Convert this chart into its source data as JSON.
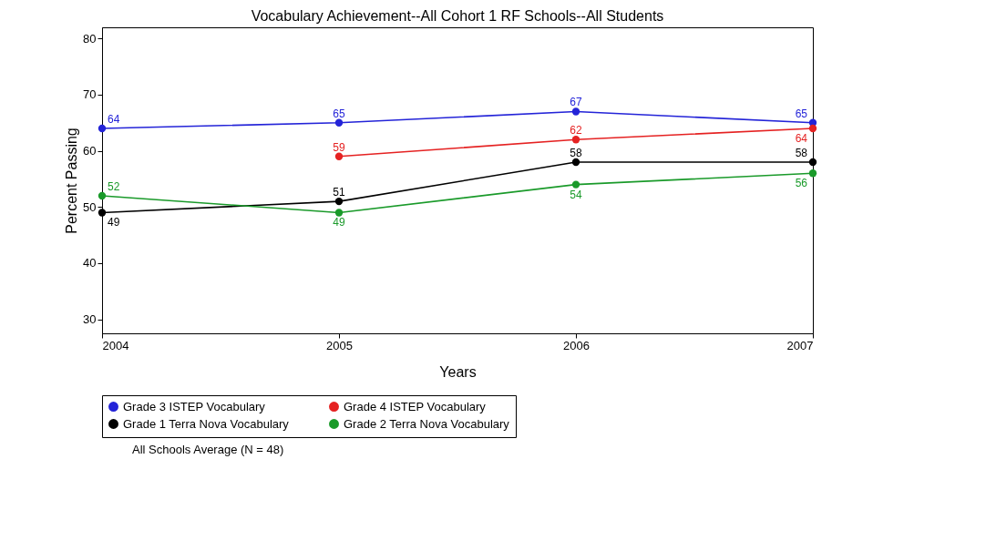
{
  "chart_data": {
    "type": "line",
    "title": "Vocabulary Achievement--All Cohort 1 RF Schools--All Students",
    "xlabel": "Years",
    "ylabel": "Percent Passing",
    "x": [
      2004,
      2005,
      2006,
      2007
    ],
    "xlim": [
      2004,
      2007
    ],
    "xticks": [
      2004,
      2005,
      2006,
      2007
    ],
    "ylim": [
      27.5,
      82
    ],
    "yticks": [
      30,
      40,
      50,
      60,
      70,
      80
    ],
    "series": [
      {
        "name": "Grade 3 ISTEP Vocabulary",
        "color": "#2424d8",
        "values": [
          64,
          65,
          67,
          65
        ]
      },
      {
        "name": "Grade 4 ISTEP Vocabulary",
        "color": "#e52222",
        "values": [
          null,
          59,
          62,
          64
        ]
      },
      {
        "name": "Grade 1 Terra Nova Vocabulary",
        "color": "#000000",
        "values": [
          49,
          51,
          58,
          58
        ]
      },
      {
        "name": "Grade 2 Terra Nova Vocabulary",
        "color": "#1a9a2a",
        "values": [
          52,
          49,
          54,
          56
        ]
      }
    ],
    "data_labels": true,
    "marker": "circle",
    "line_style": "solid",
    "legend": "bottom",
    "grid": false,
    "annotations": [
      "All Schools Average (N = 48)"
    ]
  }
}
